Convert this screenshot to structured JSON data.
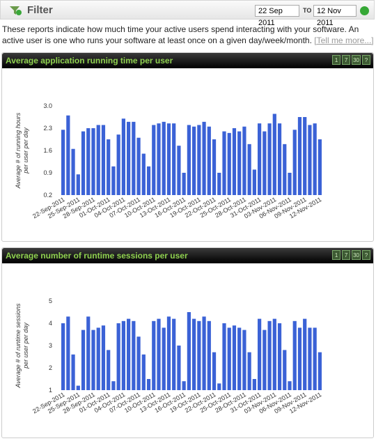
{
  "filter": {
    "title": "Filter",
    "from": "22 Sep 2011",
    "to_label": "TO",
    "to": "12 Nov 2011"
  },
  "description": {
    "text": "These reports indicate how much time your active users spend interacting with your software. An active user is one who runs your software at least once on a given day/week/month.",
    "link": "[Tell me more...]"
  },
  "chart_data": [
    {
      "type": "bar",
      "title": "Average application running time per user",
      "buttons": [
        "1",
        "7",
        "30",
        "?"
      ],
      "y_label": [
        "Average # of running hours",
        "per user per day"
      ],
      "categories": [
        "22-Sep-2011",
        null,
        null,
        "25-Sep-2011",
        null,
        null,
        "28-Sep-2011",
        null,
        null,
        "01-Oct-2011",
        null,
        null,
        "04-Oct-2011",
        null,
        null,
        "07-Oct-2011",
        null,
        null,
        "10-Oct-2011",
        null,
        null,
        "13-Oct-2011",
        null,
        null,
        "16-Oct-2011",
        null,
        null,
        "19-Oct-2011",
        null,
        null,
        "22-Oct-2011",
        null,
        null,
        "25-Oct-2011",
        null,
        null,
        "28-Oct-2011",
        null,
        null,
        "31-Oct-2011",
        null,
        null,
        "03-Nov-2011",
        null,
        null,
        "06-Nov-2011",
        null,
        null,
        "09-Nov-2011",
        null,
        null,
        "12-Nov-2011"
      ],
      "values": [
        2.25,
        2.7,
        1.65,
        0.85,
        2.2,
        2.3,
        2.3,
        2.4,
        2.4,
        1.95,
        1.1,
        2.1,
        2.6,
        2.5,
        2.5,
        2.0,
        1.5,
        1.1,
        2.4,
        2.45,
        2.5,
        2.45,
        2.45,
        1.75,
        0.9,
        2.4,
        2.35,
        2.4,
        2.5,
        2.35,
        1.95,
        0.9,
        2.2,
        2.15,
        2.3,
        2.2,
        2.35,
        1.8,
        1.0,
        2.45,
        2.2,
        2.45,
        2.75,
        2.45,
        1.8,
        0.9,
        2.25,
        2.65,
        2.65,
        2.4,
        2.45,
        1.95
      ],
      "color": "#3b62d6",
      "ylim": [
        0.2,
        3
      ],
      "yticks": [
        0.2,
        0.9,
        1.6,
        2.3,
        {
          "value": 3,
          "label": "3.0"
        }
      ]
    },
    {
      "type": "bar",
      "title": "Average number of runtime sessions per user",
      "buttons": [
        "1",
        "7",
        "30",
        "?"
      ],
      "y_label": [
        "Average # of runtime sessions",
        "per user per day"
      ],
      "categories": [
        "22-Sep-2011",
        null,
        null,
        "25-Sep-2011",
        null,
        null,
        "28-Sep-2011",
        null,
        null,
        "01-Oct-2011",
        null,
        null,
        "04-Oct-2011",
        null,
        null,
        "07-Oct-2011",
        null,
        null,
        "10-Oct-2011",
        null,
        null,
        "13-Oct-2011",
        null,
        null,
        "16-Oct-2011",
        null,
        null,
        "19-Oct-2011",
        null,
        null,
        "22-Oct-2011",
        null,
        null,
        "25-Oct-2011",
        null,
        null,
        "28-Oct-2011",
        null,
        null,
        "31-Oct-2011",
        null,
        null,
        "03-Nov-2011",
        null,
        null,
        "06-Nov-2011",
        null,
        null,
        "09-Nov-2011",
        null,
        null,
        "12-Nov-2011"
      ],
      "values": [
        4.0,
        4.3,
        2.6,
        1.2,
        3.7,
        4.3,
        3.7,
        3.8,
        3.9,
        2.8,
        1.4,
        4.0,
        4.1,
        4.2,
        4.1,
        3.4,
        2.6,
        1.5,
        4.1,
        4.2,
        3.8,
        4.3,
        4.2,
        3.0,
        1.4,
        4.5,
        4.2,
        4.1,
        4.3,
        4.1,
        2.7,
        1.3,
        4.0,
        3.8,
        3.9,
        3.8,
        3.7,
        2.7,
        1.5,
        4.2,
        3.7,
        4.1,
        4.2,
        4.0,
        2.8,
        1.4,
        4.1,
        3.8,
        4.2,
        3.8,
        3.8,
        2.7
      ],
      "color": "#3b62d6",
      "ylim": [
        1,
        5
      ],
      "yticks": [
        1,
        2,
        3,
        4,
        5
      ]
    }
  ]
}
